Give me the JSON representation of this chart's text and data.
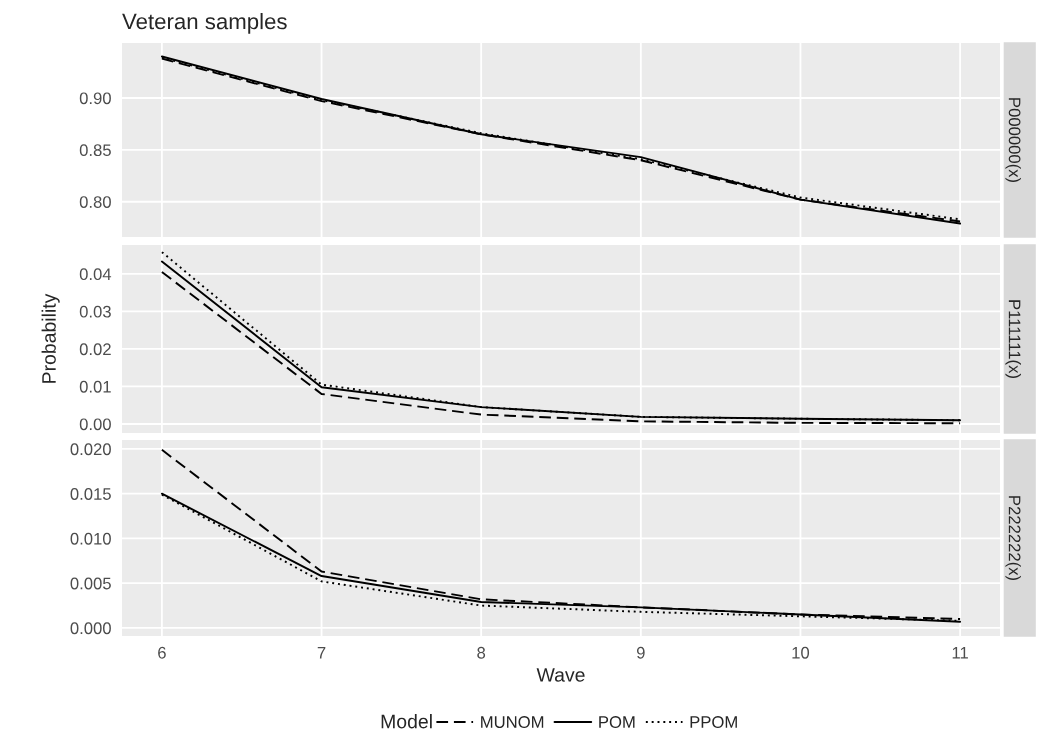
{
  "chart_data": [
    {
      "type": "line",
      "title": "Veteran samples",
      "subtitle": "P000000(x)",
      "x": [
        6,
        7,
        8,
        9,
        10,
        11
      ],
      "xlim": [
        5.75,
        11.25
      ],
      "xticks": [
        6,
        7,
        8,
        9,
        10,
        11
      ],
      "ylim": [
        0.766,
        0.953
      ],
      "yticks": [
        {
          "value": 0.8,
          "label": "0.80"
        },
        0.85,
        {
          "value": 0.9,
          "label": "0.90"
        }
      ],
      "grid": true,
      "tick_labels": "y",
      "series": [
        {
          "color": "#000000",
          "line_style": "dashed",
          "values": [
            0.938,
            0.897,
            0.865,
            0.84,
            0.802,
            0.781
          ]
        },
        {
          "color": "#000000",
          "line_style": "solid",
          "values": [
            0.94,
            0.899,
            0.865,
            0.843,
            0.802,
            0.779
          ]
        },
        {
          "color": "#000000",
          "line_style": "dotted",
          "values": [
            0.939,
            0.898,
            0.866,
            0.841,
            0.804,
            0.783
          ]
        }
      ]
    },
    {
      "type": "line",
      "subtitle": "P111111(x)",
      "ylabel": "Probability",
      "x": [
        6,
        7,
        8,
        9,
        10,
        11
      ],
      "xlim": [
        5.75,
        11.25
      ],
      "xticks": [
        6,
        7,
        8,
        9,
        10,
        11
      ],
      "ylim": [
        -0.0024,
        0.0477
      ],
      "yticks": [
        {
          "value": 0,
          "label": "0.00"
        },
        0.01,
        0.02,
        0.03,
        0.04
      ],
      "grid": true,
      "tick_labels": "y",
      "series": [
        {
          "color": "#000000",
          "line_style": "dashed",
          "values": [
            0.0405,
            0.008,
            0.0025,
            0.0007,
            0.0003,
            0.0002
          ]
        },
        {
          "color": "#000000",
          "line_style": "solid",
          "values": [
            0.0433,
            0.0098,
            0.0045,
            0.0019,
            0.0014,
            0.001
          ]
        },
        {
          "color": "#000000",
          "line_style": "dotted",
          "values": [
            0.0458,
            0.0105,
            0.0045,
            0.0019,
            0.0014,
            0.001
          ]
        }
      ]
    },
    {
      "type": "line",
      "subtitle": "P222222(x)",
      "xlabel": "Wave",
      "legend_title": "Model",
      "legend": "bottom",
      "x": [
        6,
        7,
        8,
        9,
        10,
        11
      ],
      "xlim": [
        5.75,
        11.25
      ],
      "xticks": [
        6,
        7,
        8,
        9,
        10,
        11
      ],
      "ylim": [
        -0.0009,
        0.021
      ],
      "yticks": [
        {
          "value": 0,
          "label": "0.000"
        },
        0.005,
        {
          "value": 0.01,
          "label": "0.010"
        },
        0.015,
        {
          "value": 0.02,
          "label": "0.020"
        }
      ],
      "grid": true,
      "series": [
        {
          "name": "MUNOM",
          "color": "#000000",
          "line_style": "dashed",
          "values": [
            0.0199,
            0.0063,
            0.0032,
            0.0023,
            0.0015,
            0.001
          ]
        },
        {
          "name": "POM",
          "color": "#000000",
          "line_style": "solid",
          "values": [
            0.015,
            0.0058,
            0.0029,
            0.0023,
            0.0015,
            0.0007
          ]
        },
        {
          "name": "PPOM",
          "color": "#000000",
          "line_style": "dotted",
          "values": [
            0.0149,
            0.0052,
            0.0025,
            0.0018,
            0.0013,
            0.0008
          ]
        }
      ]
    }
  ]
}
